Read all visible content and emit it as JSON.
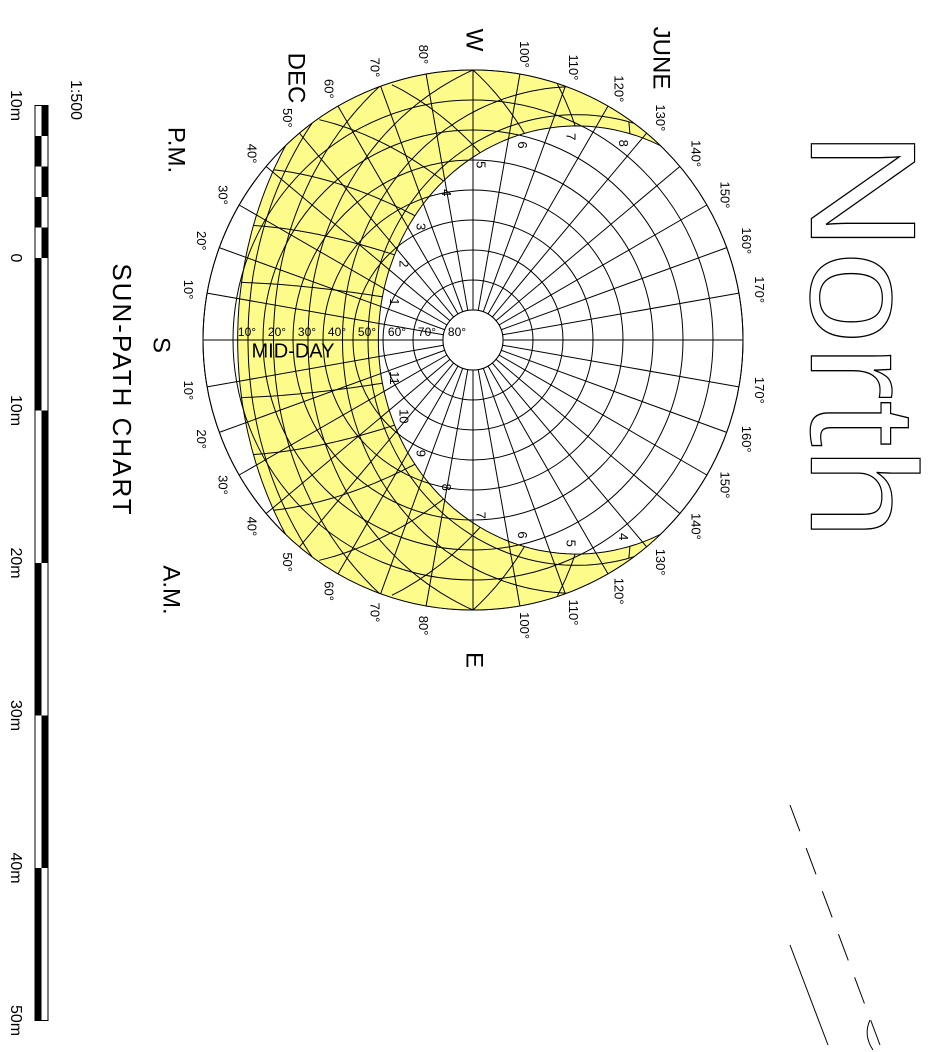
{
  "north_label": "North",
  "chart_title": "SUN-PATH CHART",
  "pm_label": "P.M.",
  "am_label": "A.M.",
  "south_label": "S",
  "west_label": "W",
  "east_label": "E",
  "june_label": "JUNE",
  "dec_label": "DEC",
  "midday_label": "MID-DAY",
  "azimuth_ticks_west": [
    {
      "value": 10,
      "label": "10°"
    },
    {
      "value": 20,
      "label": "20°"
    },
    {
      "value": 30,
      "label": "30°"
    },
    {
      "value": 40,
      "label": "40°"
    },
    {
      "value": 50,
      "label": "50°"
    },
    {
      "value": 60,
      "label": "60°"
    },
    {
      "value": 70,
      "label": "70°"
    },
    {
      "value": 80,
      "label": "80°"
    },
    {
      "value": 100,
      "label": "100°"
    },
    {
      "value": 110,
      "label": "110°"
    },
    {
      "value": 120,
      "label": "120°"
    },
    {
      "value": 130,
      "label": "130°"
    },
    {
      "value": 140,
      "label": "140°"
    },
    {
      "value": 150,
      "label": "150°"
    },
    {
      "value": 160,
      "label": "160°"
    },
    {
      "value": 170,
      "label": "170°"
    }
  ],
  "azimuth_ticks_east": [
    {
      "value": 10,
      "label": "10°"
    },
    {
      "value": 20,
      "label": "20°"
    },
    {
      "value": 30,
      "label": "30°"
    },
    {
      "value": 40,
      "label": "40°"
    },
    {
      "value": 50,
      "label": "50°"
    },
    {
      "value": 60,
      "label": "60°"
    },
    {
      "value": 70,
      "label": "70°"
    },
    {
      "value": 80,
      "label": "80°"
    },
    {
      "value": 100,
      "label": "100°"
    },
    {
      "value": 110,
      "label": "110°"
    },
    {
      "value": 120,
      "label": "120°"
    },
    {
      "value": 130,
      "label": "130°"
    },
    {
      "value": 140,
      "label": "140°"
    },
    {
      "value": 150,
      "label": "150°"
    },
    {
      "value": 160,
      "label": "160°"
    },
    {
      "value": 170,
      "label": "170°"
    }
  ],
  "altitude_ticks": [
    {
      "value": 80,
      "label": "80°"
    },
    {
      "value": 70,
      "label": "70°"
    },
    {
      "value": 60,
      "label": "60°"
    },
    {
      "value": 50,
      "label": "50°"
    },
    {
      "value": 40,
      "label": "40°"
    },
    {
      "value": 30,
      "label": "30°"
    },
    {
      "value": 20,
      "label": "20°"
    },
    {
      "value": 10,
      "label": "10°"
    }
  ],
  "am_hours": [
    4,
    5,
    6,
    7,
    8,
    9,
    10,
    11
  ],
  "pm_hours": [
    1,
    2,
    3,
    4,
    5,
    6,
    7,
    8
  ],
  "scale": {
    "ratio": "1:500",
    "ticks": [
      {
        "value": -10,
        "label": "10m"
      },
      {
        "value": 0,
        "label": "0"
      },
      {
        "value": 10,
        "label": "10m"
      },
      {
        "value": 20,
        "label": "20m"
      },
      {
        "value": 30,
        "label": "30m"
      },
      {
        "value": 40,
        "label": "40m"
      },
      {
        "value": 50,
        "label": "50m"
      }
    ]
  }
}
